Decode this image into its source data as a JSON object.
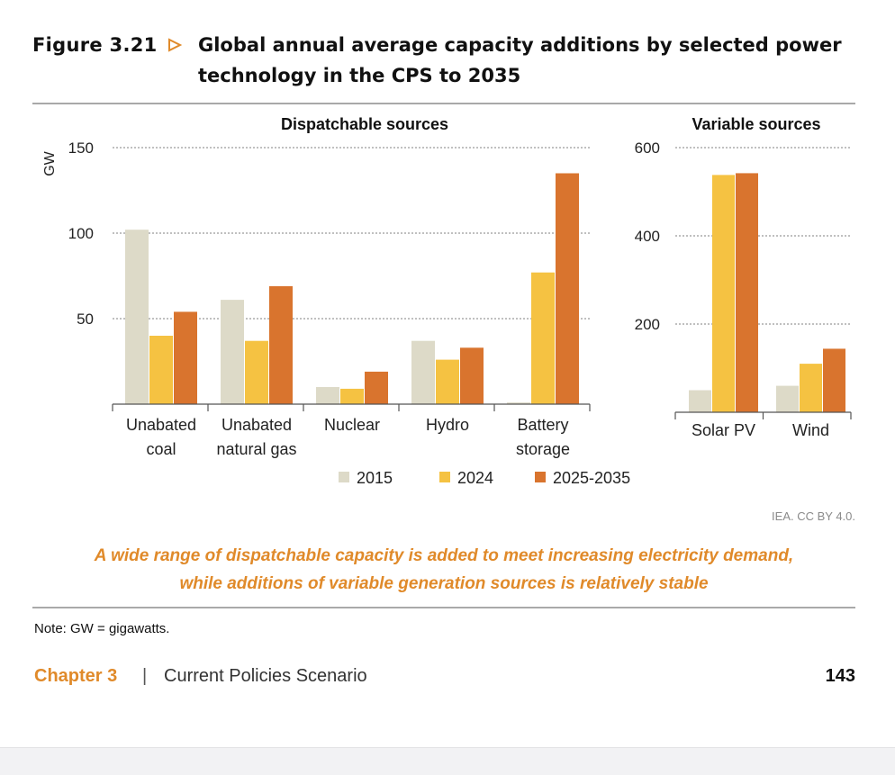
{
  "figure": {
    "label": "Figure 3.21",
    "title": "Global annual average capacity additions by selected power technology in the CPS to 2035"
  },
  "colors": {
    "s2015": "#dddac8",
    "s2024": "#f5c242",
    "s2035": "#d9742e",
    "accent": "#e08a2a"
  },
  "unit_label": "GW",
  "legend": [
    {
      "label": "2015",
      "color": "#dddac8"
    },
    {
      "label": "2024",
      "color": "#f5c242"
    },
    {
      "label": "2025-2035",
      "color": "#d9742e"
    }
  ],
  "chart_data": [
    {
      "type": "bar",
      "title": "Dispatchable sources",
      "ylabel": "GW",
      "ylim": [
        0,
        150
      ],
      "yticks": [
        50,
        100,
        150
      ],
      "grid": true,
      "categories": [
        [
          "Unabated",
          "coal"
        ],
        [
          "Unabated",
          "natural gas"
        ],
        [
          "Nuclear"
        ],
        [
          "Hydro"
        ],
        [
          "Battery",
          "storage"
        ]
      ],
      "series": [
        {
          "name": "2015",
          "values": [
            102,
            61,
            10,
            37,
            1
          ]
        },
        {
          "name": "2024",
          "values": [
            40,
            37,
            9,
            26,
            77
          ]
        },
        {
          "name": "2025-2035",
          "values": [
            54,
            69,
            19,
            33,
            135
          ]
        }
      ]
    },
    {
      "type": "bar",
      "title": "Variable sources",
      "ylim": [
        0,
        600
      ],
      "yticks": [
        200,
        400,
        600
      ],
      "grid": true,
      "categories": [
        [
          "Solar PV"
        ],
        [
          "Wind"
        ]
      ],
      "series": [
        {
          "name": "2015",
          "values": [
            50,
            60
          ]
        },
        {
          "name": "2024",
          "values": [
            538,
            110
          ]
        },
        {
          "name": "2025-2035",
          "values": [
            542,
            144
          ]
        }
      ]
    }
  ],
  "credit": "IEA. CC BY 4.0.",
  "caption": [
    "A wide range of dispatchable capacity is added to meet increasing electricity demand,",
    "while additions of variable generation sources is relatively stable"
  ],
  "note": "Note: GW = gigawatts.",
  "footer": {
    "chapter": "Chapter 3",
    "separator": "|",
    "section": "Current Policies Scenario",
    "page": "143"
  }
}
